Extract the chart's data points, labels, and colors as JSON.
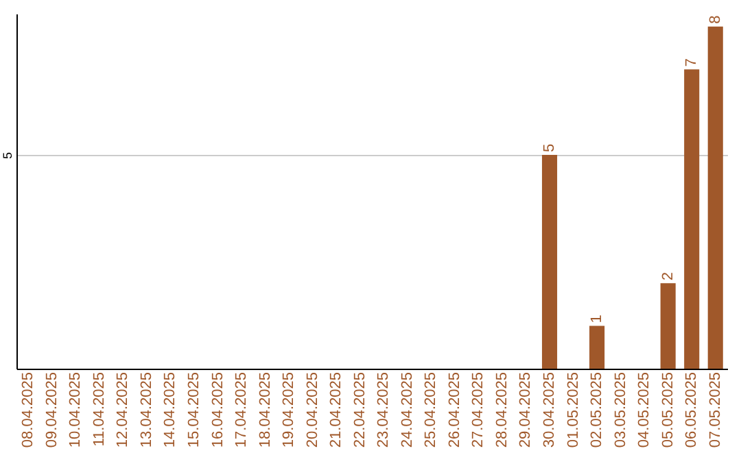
{
  "chart_data": {
    "type": "bar",
    "categories": [
      "08.04.2025",
      "09.04.2025",
      "10.04.2025",
      "11.04.2025",
      "12.04.2025",
      "13.04.2025",
      "14.04.2025",
      "15.04.2025",
      "16.04.2025",
      "17.04.2025",
      "18.04.2025",
      "19.04.2025",
      "20.04.2025",
      "21.04.2025",
      "22.04.2025",
      "23.04.2025",
      "24.04.2025",
      "25.04.2025",
      "26.04.2025",
      "27.04.2025",
      "28.04.2025",
      "29.04.2025",
      "30.04.2025",
      "01.05.2025",
      "02.05.2025",
      "03.05.2025",
      "04.05.2025",
      "05.05.2025",
      "06.05.2025",
      "07.05.2025"
    ],
    "values": [
      null,
      null,
      null,
      null,
      null,
      null,
      null,
      null,
      null,
      null,
      null,
      null,
      null,
      null,
      null,
      null,
      null,
      null,
      null,
      null,
      null,
      null,
      5,
      null,
      1,
      null,
      null,
      2,
      7,
      8
    ],
    "data_labels": true,
    "color": "#a0582a",
    "ylim": [
      0,
      8.3
    ],
    "yticks": [
      5
    ],
    "grid": "y"
  }
}
